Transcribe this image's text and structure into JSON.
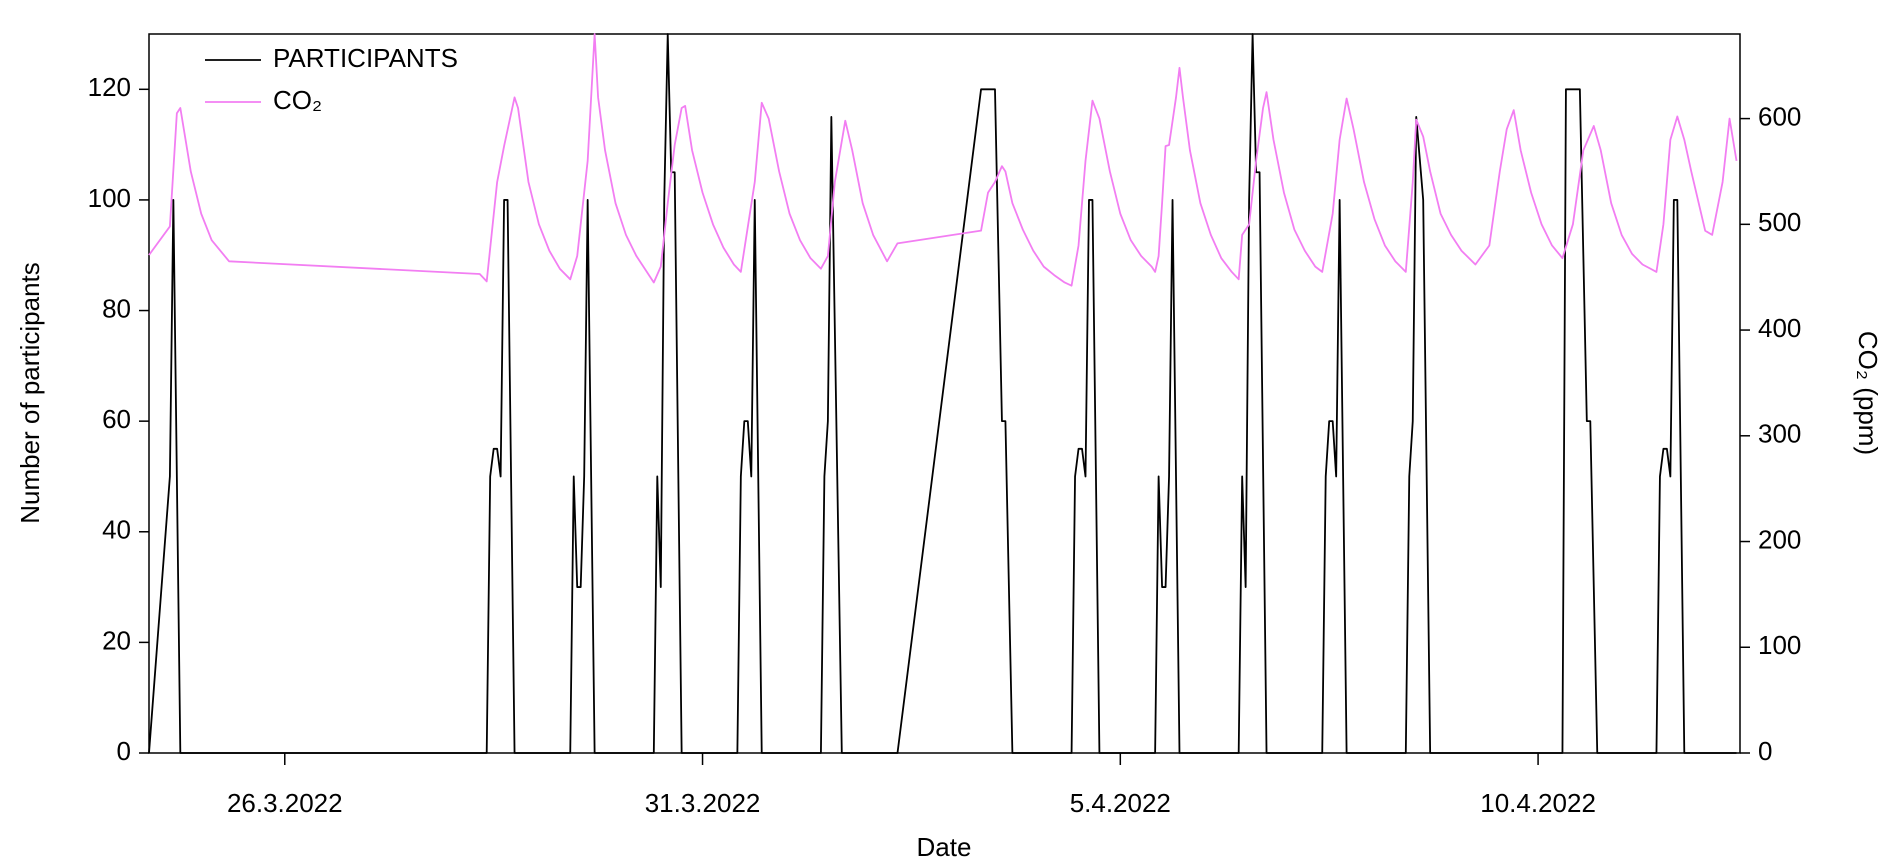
{
  "chart_data": {
    "type": "line",
    "x_label": "Date",
    "y_label": "Number of participants",
    "y2_label": "CO₂ (ppm)",
    "legend": "upper left",
    "grid": false,
    "xlim": [
      "2022-03-24T09:00",
      "2022-04-12T10:00"
    ],
    "xticks": [
      {
        "value": "2022-03-26",
        "label": "26.3.2022"
      },
      {
        "value": "2022-03-31",
        "label": "31.3.2022"
      },
      {
        "value": "2022-04-05",
        "label": "5.4.2022"
      },
      {
        "value": "2022-04-10",
        "label": "10.4.2022"
      }
    ],
    "ylim": [
      0,
      130
    ],
    "yticks": [
      0,
      20,
      40,
      60,
      80,
      100,
      120
    ],
    "y2lim": [
      0,
      680
    ],
    "y2ticks": [
      0,
      100,
      200,
      300,
      400,
      500,
      600
    ],
    "series": [
      {
        "name": "PARTICIPANTS",
        "color": "#000000",
        "x": [
          "2022-03-24T09:00",
          "2022-03-24T15:00",
          "2022-03-24T16:00",
          "2022-03-24T18:00",
          "2022-03-28T10:00",
          "2022-03-28T11:00",
          "2022-03-28T12:00",
          "2022-03-28T13:00",
          "2022-03-28T14:00",
          "2022-03-28T15:00",
          "2022-03-28T16:00",
          "2022-03-28T18:00",
          "2022-03-29T10:00",
          "2022-03-29T11:00",
          "2022-03-29T12:00",
          "2022-03-29T13:00",
          "2022-03-29T14:00",
          "2022-03-29T15:00",
          "2022-03-29T17:00",
          "2022-03-30T10:00",
          "2022-03-30T11:00",
          "2022-03-30T12:00",
          "2022-03-30T13:00",
          "2022-03-30T14:00",
          "2022-03-30T15:00",
          "2022-03-30T16:00",
          "2022-03-30T18:00",
          "2022-03-31T10:00",
          "2022-03-31T11:00",
          "2022-03-31T12:00",
          "2022-03-31T13:00",
          "2022-03-31T14:00",
          "2022-03-31T15:00",
          "2022-03-31T17:00",
          "2022-04-01T10:00",
          "2022-04-01T11:00",
          "2022-04-01T12:00",
          "2022-04-01T13:00",
          "2022-04-01T16:00",
          "2022-04-02T08:00",
          "2022-04-03T08:00",
          "2022-04-03T12:00",
          "2022-04-03T14:00",
          "2022-04-03T15:00",
          "2022-04-03T17:00",
          "2022-04-04T10:00",
          "2022-04-04T11:00",
          "2022-04-04T12:00",
          "2022-04-04T13:00",
          "2022-04-04T14:00",
          "2022-04-04T15:00",
          "2022-04-04T16:00",
          "2022-04-04T18:00",
          "2022-04-05T10:00",
          "2022-04-05T11:00",
          "2022-04-05T12:00",
          "2022-04-05T13:00",
          "2022-04-05T14:00",
          "2022-04-05T15:00",
          "2022-04-05T17:00",
          "2022-04-06T10:00",
          "2022-04-06T11:00",
          "2022-04-06T12:00",
          "2022-04-06T13:00",
          "2022-04-06T14:00",
          "2022-04-06T15:00",
          "2022-04-06T16:00",
          "2022-04-06T18:00",
          "2022-04-07T10:00",
          "2022-04-07T11:00",
          "2022-04-07T12:00",
          "2022-04-07T13:00",
          "2022-04-07T14:00",
          "2022-04-07T15:00",
          "2022-04-07T17:00",
          "2022-04-08T10:00",
          "2022-04-08T11:00",
          "2022-04-08T12:00",
          "2022-04-08T13:00",
          "2022-04-08T15:00",
          "2022-04-08T17:00",
          "2022-04-10T07:00",
          "2022-04-10T08:00",
          "2022-04-10T12:00",
          "2022-04-10T14:00",
          "2022-04-10T15:00",
          "2022-04-10T17:00",
          "2022-04-11T10:00",
          "2022-04-11T11:00",
          "2022-04-11T12:00",
          "2022-04-11T13:00",
          "2022-04-11T14:00",
          "2022-04-11T15:00",
          "2022-04-11T16:00",
          "2022-04-11T18:00",
          "2022-04-12T09:00"
        ],
        "values": [
          0,
          50,
          100,
          0,
          0,
          50,
          55,
          55,
          50,
          100,
          100,
          0,
          0,
          50,
          30,
          30,
          50,
          100,
          0,
          0,
          50,
          30,
          100,
          130,
          105,
          105,
          0,
          0,
          50,
          60,
          60,
          50,
          100,
          0,
          0,
          50,
          60,
          115,
          0,
          0,
          120,
          120,
          60,
          60,
          0,
          0,
          50,
          55,
          55,
          50,
          100,
          100,
          0,
          0,
          50,
          30,
          30,
          50,
          100,
          0,
          0,
          50,
          30,
          100,
          130,
          105,
          105,
          0,
          0,
          50,
          60,
          60,
          50,
          100,
          0,
          0,
          50,
          60,
          115,
          100,
          0,
          0,
          120,
          120,
          60,
          60,
          0,
          0,
          50,
          55,
          55,
          50,
          100,
          100,
          0,
          0
        ]
      },
      {
        "name": "CO₂",
        "color": "#f27ef2",
        "axis": "y2",
        "x": [
          "2022-03-24T09:00",
          "2022-03-24T15:00",
          "2022-03-24T17:00",
          "2022-03-24T18:00",
          "2022-03-24T21:00",
          "2022-03-25T00:00",
          "2022-03-25T03:00",
          "2022-03-25T08:00",
          "2022-03-28T08:00",
          "2022-03-28T10:00",
          "2022-03-28T13:00",
          "2022-03-28T15:00",
          "2022-03-28T18:00",
          "2022-03-28T19:00",
          "2022-03-28T22:00",
          "2022-03-29T01:00",
          "2022-03-29T04:00",
          "2022-03-29T07:00",
          "2022-03-29T10:00",
          "2022-03-29T12:00",
          "2022-03-29T15:00",
          "2022-03-29T17:00",
          "2022-03-29T18:00",
          "2022-03-29T20:00",
          "2022-03-29T23:00",
          "2022-03-30T02:00",
          "2022-03-30T05:00",
          "2022-03-30T08:00",
          "2022-03-30T10:00",
          "2022-03-30T12:00",
          "2022-03-30T14:00",
          "2022-03-30T16:00",
          "2022-03-30T18:00",
          "2022-03-30T19:00",
          "2022-03-30T21:00",
          "2022-03-31T00:00",
          "2022-03-31T03:00",
          "2022-03-31T06:00",
          "2022-03-31T09:00",
          "2022-03-31T11:00",
          "2022-03-31T15:00",
          "2022-03-31T17:00",
          "2022-03-31T19:00",
          "2022-03-31T22:00",
          "2022-04-01T01:00",
          "2022-04-01T04:00",
          "2022-04-01T07:00",
          "2022-04-01T10:00",
          "2022-04-01T12:00",
          "2022-04-01T14:00",
          "2022-04-01T17:00",
          "2022-04-01T19:00",
          "2022-04-01T22:00",
          "2022-04-02T01:00",
          "2022-04-02T05:00",
          "2022-04-02T08:00",
          "2022-04-03T08:00",
          "2022-04-03T10:00",
          "2022-04-03T12:00",
          "2022-04-03T14:00",
          "2022-04-03T15:00",
          "2022-04-03T17:00",
          "2022-04-03T20:00",
          "2022-04-03T23:00",
          "2022-04-04T02:00",
          "2022-04-04T05:00",
          "2022-04-04T08:00",
          "2022-04-04T10:00",
          "2022-04-04T12:00",
          "2022-04-04T14:00",
          "2022-04-04T16:00",
          "2022-04-04T18:00",
          "2022-04-04T21:00",
          "2022-04-05T00:00",
          "2022-04-05T03:00",
          "2022-04-05T06:00",
          "2022-04-05T09:00",
          "2022-04-05T10:00",
          "2022-04-05T11:00",
          "2022-04-05T12:00",
          "2022-04-05T13:00",
          "2022-04-05T14:00",
          "2022-04-05T16:00",
          "2022-04-05T17:00",
          "2022-04-05T18:00",
          "2022-04-05T20:00",
          "2022-04-05T23:00",
          "2022-04-06T02:00",
          "2022-04-06T05:00",
          "2022-04-06T08:00",
          "2022-04-06T10:00",
          "2022-04-06T11:00",
          "2022-04-06T13:00",
          "2022-04-06T15:00",
          "2022-04-06T17:00",
          "2022-04-06T18:00",
          "2022-04-06T20:00",
          "2022-04-06T23:00",
          "2022-04-07T02:00",
          "2022-04-07T05:00",
          "2022-04-07T08:00",
          "2022-04-07T10:00",
          "2022-04-07T13:00",
          "2022-04-07T15:00",
          "2022-04-07T17:00",
          "2022-04-07T19:00",
          "2022-04-07T22:00",
          "2022-04-08T01:00",
          "2022-04-08T04:00",
          "2022-04-08T07:00",
          "2022-04-08T10:00",
          "2022-04-08T12:00",
          "2022-04-08T13:00",
          "2022-04-08T15:00",
          "2022-04-08T17:00",
          "2022-04-08T20:00",
          "2022-04-08T23:00",
          "2022-04-09T02:00",
          "2022-04-09T06:00",
          "2022-04-09T10:00",
          "2022-04-09T13:00",
          "2022-04-09T15:00",
          "2022-04-09T17:00",
          "2022-04-09T19:00",
          "2022-04-09T22:00",
          "2022-04-10T01:00",
          "2022-04-10T04:00",
          "2022-04-10T07:00",
          "2022-04-10T10:00",
          "2022-04-10T13:00",
          "2022-04-10T16:00",
          "2022-04-10T18:00",
          "2022-04-10T21:00",
          "2022-04-11T00:00",
          "2022-04-11T03:00",
          "2022-04-11T06:00",
          "2022-04-11T10:00",
          "2022-04-11T12:00",
          "2022-04-11T14:00",
          "2022-04-11T16:00",
          "2022-04-11T18:00",
          "2022-04-11T20:00",
          "2022-04-12T00:00",
          "2022-04-12T02:00",
          "2022-04-12T05:00",
          "2022-04-12T07:00",
          "2022-04-12T09:00"
        ],
        "values": [
          471,
          498,
          605,
          610,
          550,
          510,
          485,
          465,
          453,
          446,
          540,
          574,
          620,
          610,
          540,
          500,
          475,
          458,
          448,
          470,
          560,
          680,
          620,
          570,
          520,
          490,
          470,
          455,
          445,
          460,
          520,
          575,
          610,
          612,
          570,
          530,
          500,
          478,
          462,
          455,
          540,
          615,
          600,
          550,
          510,
          485,
          468,
          458,
          470,
          540,
          598,
          570,
          520,
          490,
          465,
          482,
          494,
          530,
          540,
          555,
          550,
          520,
          495,
          475,
          460,
          452,
          445,
          442,
          480,
          560,
          617,
          600,
          550,
          510,
          485,
          470,
          460,
          455,
          470,
          520,
          574,
          575,
          620,
          648,
          620,
          570,
          520,
          490,
          468,
          455,
          448,
          490,
          500,
          560,
          610,
          625,
          580,
          530,
          495,
          475,
          460,
          455,
          510,
          580,
          619,
          590,
          540,
          505,
          480,
          465,
          455,
          540,
          599,
          583,
          550,
          510,
          490,
          475,
          462,
          480,
          550,
          590,
          608,
          570,
          530,
          500,
          480,
          468,
          500,
          570,
          593,
          570,
          520,
          490,
          472,
          462,
          455,
          500,
          580,
          602,
          580,
          550,
          494,
          490,
          540,
          600,
          560
        ]
      }
    ]
  }
}
